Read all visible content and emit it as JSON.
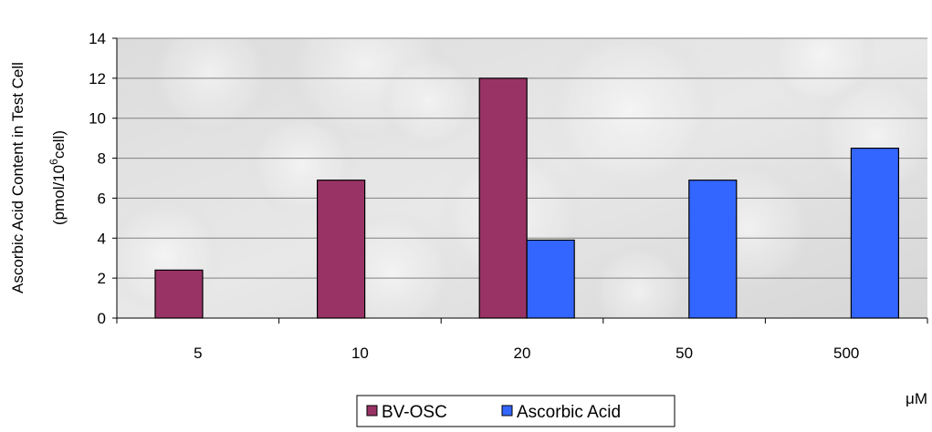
{
  "chart_data": {
    "type": "bar",
    "categories": [
      "5",
      "10",
      "20",
      "50",
      "500"
    ],
    "series": [
      {
        "name": "BV-OSC",
        "color": "#993366",
        "values": [
          2.4,
          6.9,
          12.0,
          null,
          null
        ]
      },
      {
        "name": "Ascorbic Acid",
        "color": "#3366FF",
        "values": [
          null,
          null,
          3.9,
          6.9,
          8.5
        ]
      }
    ],
    "title": "",
    "xlabel": "μM",
    "ylabel_line1": "Ascorbic Acid Content in Test Cell",
    "ylabel_line2_prefix": "(pmol/10",
    "ylabel_line2_sup": "6",
    "ylabel_line2_suffix": "cell)",
    "ylim": [
      0,
      14
    ],
    "yticks": [
      0,
      2,
      4,
      6,
      8,
      10,
      12,
      14
    ],
    "grid": true,
    "legend_position": "bottom",
    "plot_background": "photo-texture-gray"
  }
}
